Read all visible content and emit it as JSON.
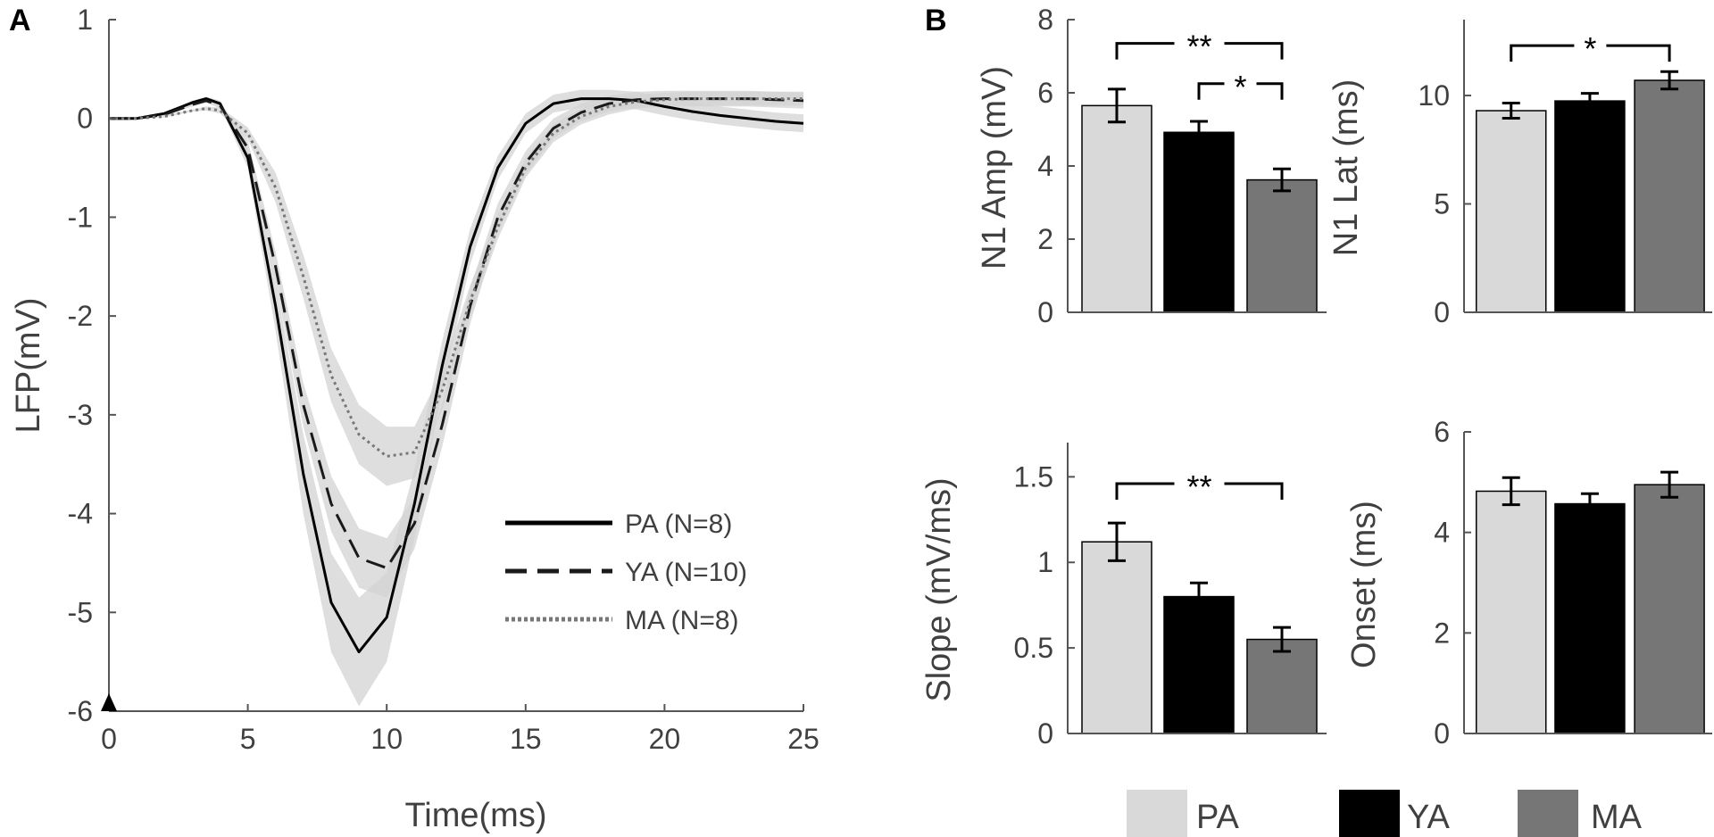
{
  "chart_data": [
    {
      "type": "line",
      "panel": "A",
      "xlabel": "Time(ms)",
      "ylabel": "LFP(mV)",
      "xlim": [
        0,
        25
      ],
      "ylim": [
        -6,
        1
      ],
      "xticks": [
        0,
        5,
        10,
        15,
        20,
        25
      ],
      "yticks": [
        1,
        0,
        -1,
        -2,
        -3,
        -4,
        -5,
        -6
      ],
      "stim_marker_at": 0,
      "series": [
        {
          "name": "PA (N=8)",
          "style": "solid",
          "x": [
            0,
            1,
            2,
            3,
            3.5,
            4,
            5,
            6,
            7,
            8,
            9,
            10,
            11,
            12,
            13,
            14,
            15,
            16,
            17,
            18,
            19,
            20,
            21,
            22,
            23,
            24,
            25
          ],
          "y": [
            0,
            0,
            0.05,
            0.16,
            0.2,
            0.15,
            -0.4,
            -1.9,
            -3.6,
            -4.9,
            -5.4,
            -5.05,
            -3.9,
            -2.5,
            -1.3,
            -0.5,
            -0.05,
            0.15,
            0.2,
            0.2,
            0.18,
            0.12,
            0.07,
            0.03,
            0,
            -0.03,
            -0.05
          ],
          "sem": [
            0,
            0,
            0.01,
            0.02,
            0.02,
            0.03,
            0.1,
            0.25,
            0.4,
            0.5,
            0.55,
            0.45,
            0.35,
            0.25,
            0.18,
            0.12,
            0.1,
            0.09,
            0.09,
            0.09,
            0.09,
            0.09,
            0.09,
            0.09,
            0.09,
            0.09,
            0.09
          ]
        },
        {
          "name": "YA (N=10)",
          "style": "dashed",
          "x": [
            0,
            1,
            2,
            3,
            3.5,
            4,
            5,
            6,
            7,
            8,
            9,
            10,
            11,
            12,
            13,
            14,
            15,
            16,
            17,
            18,
            19,
            20,
            21,
            22,
            23,
            24,
            25
          ],
          "y": [
            0,
            0,
            0.04,
            0.14,
            0.18,
            0.13,
            -0.3,
            -1.5,
            -2.9,
            -3.9,
            -4.45,
            -4.55,
            -4.1,
            -3.1,
            -1.9,
            -1.0,
            -0.45,
            -0.1,
            0.06,
            0.15,
            0.19,
            0.2,
            0.2,
            0.2,
            0.2,
            0.19,
            0.18
          ],
          "sem": [
            0,
            0,
            0.01,
            0.02,
            0.02,
            0.03,
            0.08,
            0.15,
            0.22,
            0.28,
            0.3,
            0.3,
            0.26,
            0.22,
            0.18,
            0.14,
            0.12,
            0.1,
            0.09,
            0.08,
            0.08,
            0.08,
            0.08,
            0.08,
            0.08,
            0.08,
            0.08
          ]
        },
        {
          "name": "MA (N=8)",
          "style": "dotted",
          "x": [
            0,
            1,
            2,
            3,
            3.5,
            4,
            5,
            6,
            7,
            8,
            9,
            10,
            11,
            12,
            13,
            14,
            15,
            16,
            17,
            18,
            19,
            20,
            21,
            22,
            23,
            24,
            25
          ],
          "y": [
            0,
            0,
            0.02,
            0.08,
            0.1,
            0.08,
            -0.15,
            -0.7,
            -1.6,
            -2.6,
            -3.2,
            -3.42,
            -3.38,
            -2.75,
            -1.85,
            -1.1,
            -0.5,
            -0.15,
            0.02,
            0.12,
            0.17,
            0.19,
            0.2,
            0.2,
            0.2,
            0.2,
            0.2
          ],
          "sem": [
            0,
            0,
            0.01,
            0.01,
            0.02,
            0.03,
            0.06,
            0.15,
            0.22,
            0.27,
            0.3,
            0.3,
            0.26,
            0.2,
            0.16,
            0.12,
            0.1,
            0.09,
            0.08,
            0.08,
            0.07,
            0.07,
            0.07,
            0.07,
            0.07,
            0.07,
            0.07
          ]
        }
      ]
    },
    {
      "type": "bar",
      "panel": "B",
      "ylabel": "N1 Amp (mV)",
      "ylim": [
        0,
        8
      ],
      "yticks": [
        0,
        2,
        4,
        6,
        8
      ],
      "categories": [
        "PA",
        "YA",
        "MA"
      ],
      "values": [
        5.65,
        4.92,
        3.62
      ],
      "errors": [
        0.45,
        0.3,
        0.3
      ],
      "significance": [
        {
          "from": 0,
          "to": 2,
          "label": "**",
          "y": 7.35
        },
        {
          "from": 1,
          "to": 2,
          "label": "*",
          "y": 6.25
        }
      ]
    },
    {
      "type": "bar",
      "ylabel": "N1 Lat (ms)",
      "ylim": [
        0,
        13.5
      ],
      "yticks": [
        0,
        5,
        10
      ],
      "categories": [
        "PA",
        "YA",
        "MA"
      ],
      "values": [
        9.3,
        9.75,
        10.7
      ],
      "errors": [
        0.35,
        0.35,
        0.4
      ],
      "significance": [
        {
          "from": 0,
          "to": 2,
          "label": "*",
          "y": 12.3
        }
      ]
    },
    {
      "type": "bar",
      "ylabel": "Slope (mV/ms)",
      "ylim": [
        0,
        1.7
      ],
      "yticks": [
        0,
        0.5,
        1,
        1.5
      ],
      "categories": [
        "PA",
        "YA",
        "MA"
      ],
      "values": [
        1.12,
        0.8,
        0.55
      ],
      "errors": [
        0.11,
        0.08,
        0.07
      ],
      "significance": [
        {
          "from": 0,
          "to": 2,
          "label": "**",
          "y": 1.46
        }
      ]
    },
    {
      "type": "bar",
      "ylabel": "Onset (ms)",
      "ylim": [
        0,
        6
      ],
      "yticks": [
        0,
        2,
        4,
        6
      ],
      "categories": [
        "PA",
        "YA",
        "MA"
      ],
      "values": [
        4.82,
        4.57,
        4.95
      ],
      "errors": [
        0.27,
        0.2,
        0.25
      ],
      "significance": []
    }
  ],
  "legend_b": [
    {
      "label": "PA",
      "color": "#d9d9d9"
    },
    {
      "label": "YA",
      "color": "#000000"
    },
    {
      "label": "MA",
      "color": "#767676"
    }
  ],
  "colors": {
    "pa": "#d9d9d9",
    "ya": "#000000",
    "ma": "#767676",
    "band": "#d3d3d3",
    "axis": "#404040"
  }
}
